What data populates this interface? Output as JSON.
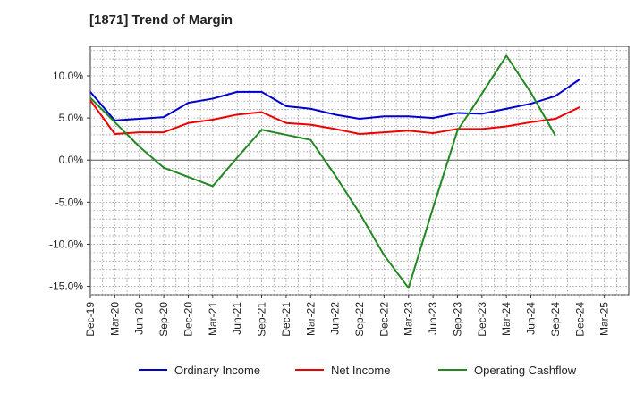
{
  "title": "[1871]  Trend of Margin",
  "chart_data": {
    "type": "line",
    "title": "[1871]  Trend of Margin",
    "x": [
      "Dec-19",
      "Mar-20",
      "Jun-20",
      "Sep-20",
      "Dec-20",
      "Mar-21",
      "Jun-21",
      "Sep-21",
      "Dec-21",
      "Mar-22",
      "Jun-22",
      "Sep-22",
      "Dec-22",
      "Mar-23",
      "Jun-23",
      "Sep-23",
      "Dec-23",
      "Mar-24",
      "Jun-24",
      "Sep-24",
      "Dec-24",
      "Mar-25"
    ],
    "ylim": [
      -16,
      13.5
    ],
    "yticks": [
      10,
      5,
      0,
      -5,
      -10,
      -15
    ],
    "ytick_labels": [
      "10.0%",
      "5.0%",
      "0.0%",
      "-5.0%",
      "-10.0%",
      "-15.0%"
    ],
    "grid": true,
    "legend_position": "bottom",
    "series": [
      {
        "name": "Ordinary Income",
        "color": "#0000cc",
        "values": [
          8.1,
          4.7,
          4.9,
          5.1,
          6.8,
          7.3,
          8.1,
          8.1,
          6.4,
          6.1,
          5.4,
          4.9,
          5.2,
          5.2,
          5.0,
          5.6,
          5.5,
          6.1,
          6.7,
          7.6,
          9.6,
          null
        ]
      },
      {
        "name": "Net Income",
        "color": "#ee0000",
        "values": [
          7.1,
          3.1,
          3.3,
          3.3,
          4.4,
          4.8,
          5.4,
          5.7,
          4.4,
          4.2,
          3.7,
          3.1,
          3.3,
          3.5,
          3.2,
          3.7,
          3.7,
          4.0,
          4.5,
          4.9,
          6.3,
          null
        ]
      },
      {
        "name": "Operating Cashflow",
        "color": "#228822",
        "values": [
          7.4,
          4.5,
          1.6,
          -0.9,
          -2.0,
          -3.1,
          0.3,
          3.6,
          3.0,
          2.4,
          -1.8,
          -6.3,
          -11.3,
          -15.2,
          -5.7,
          3.5,
          7.9,
          12.4,
          8.0,
          2.9,
          null,
          null
        ]
      }
    ]
  }
}
